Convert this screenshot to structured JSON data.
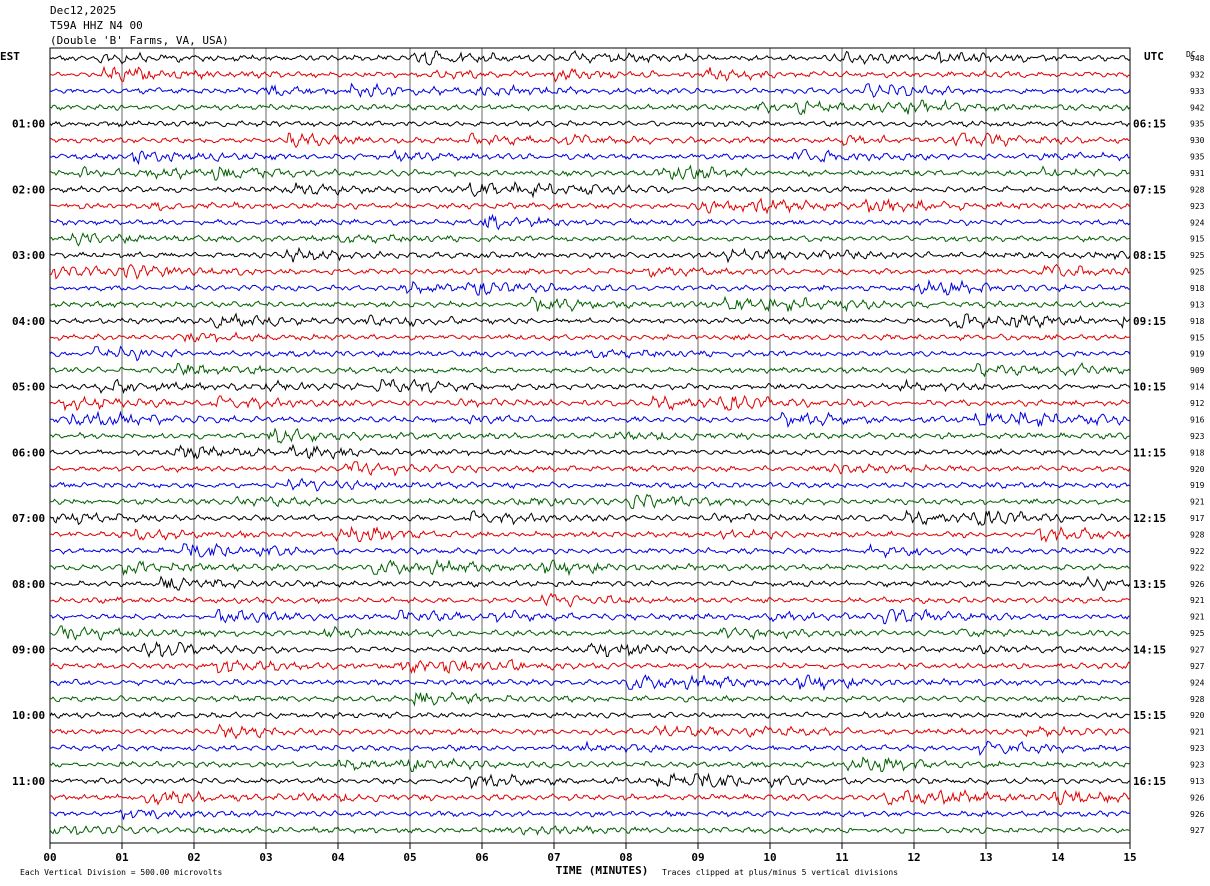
{
  "header": {
    "date": "Dec12,2025",
    "station": "T59A HHZ N4 00",
    "location": "(Double 'B' Farms, VA, USA)"
  },
  "labels": {
    "left_tz": "EST",
    "right_tz": "UTC",
    "dc": "DC",
    "xlabel": "TIME (MINUTES)",
    "scale_note": "Each Vertical Division =  500.00 microvolts",
    "clip_note": "Traces clipped at plus/minus 5 vertical divisions"
  },
  "colors": {
    "trace_cycle": [
      "#000000",
      "#e00000",
      "#0000e0",
      "#006000"
    ],
    "grid": "#000000",
    "background": "#ffffff"
  },
  "chart_data": {
    "type": "line",
    "title": "",
    "xlabel": "TIME (MINUTES)",
    "ylabel": "",
    "xlim": [
      0,
      15
    ],
    "x_ticks": [
      "00",
      "01",
      "02",
      "03",
      "04",
      "05",
      "06",
      "07",
      "08",
      "09",
      "10",
      "11",
      "12",
      "13",
      "14",
      "15"
    ],
    "traces_per_hour": 4,
    "trace_count": 48,
    "left_hour_labels": [
      "01:00",
      "02:00",
      "03:00",
      "04:00",
      "05:00",
      "06:00",
      "07:00",
      "08:00",
      "09:00",
      "10:00",
      "11:00"
    ],
    "right_hour_labels": [
      "06:15",
      "07:15",
      "08:15",
      "09:15",
      "10:15",
      "11:15",
      "12:15",
      "13:15",
      "14:15",
      "15:15",
      "16:15"
    ],
    "dc_offsets": [
      948,
      932,
      933,
      942,
      935,
      930,
      935,
      931,
      928,
      923,
      924,
      915,
      925,
      925,
      918,
      913,
      918,
      915,
      919,
      909,
      914,
      912,
      916,
      923,
      918,
      920,
      919,
      921,
      917,
      928,
      922,
      922,
      926,
      921,
      921,
      925,
      927,
      927,
      924,
      928,
      920,
      921,
      923,
      923,
      913,
      926,
      926,
      927
    ],
    "scale_microvolts_per_division": 500.0,
    "clip_divisions": 5
  }
}
